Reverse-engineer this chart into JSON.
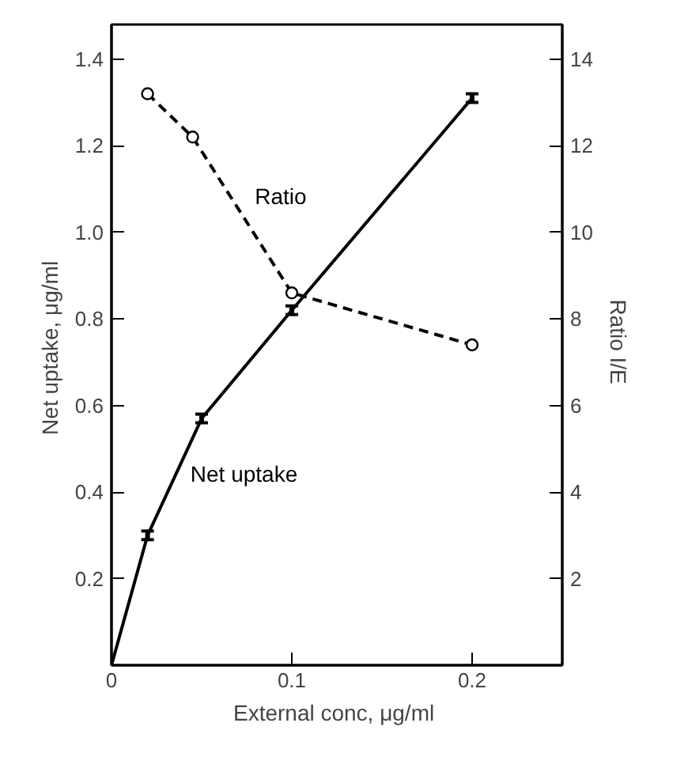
{
  "chart_data": {
    "type": "line",
    "xlabel": "External conc,  μg/ml",
    "ylabel": "Net uptake,  μg/ml",
    "y2label": "Ratio  I/E",
    "xlim": [
      0,
      0.25
    ],
    "xticks": [
      0,
      0.1,
      0.2
    ],
    "ylim": [
      0,
      1.48
    ],
    "yticks": [
      0.2,
      0.4,
      0.6,
      0.8,
      {
        "value": 1,
        "label": "1.0"
      },
      1.2,
      1.4
    ],
    "y2lim": [
      0,
      14.8
    ],
    "y2ticks": [
      2,
      4,
      6,
      8,
      10,
      12,
      14
    ],
    "grid": false,
    "series": [
      {
        "name": "Net uptake",
        "color": "#000000",
        "x": [
          0,
          0.02,
          0.05,
          0.1,
          0.2
        ],
        "values": [
          0,
          0.3,
          0.57,
          0.82,
          1.31
        ],
        "errors": [
          null,
          0.01,
          0.01,
          0.01,
          0.01
        ],
        "marker": "none",
        "line_style": "solid"
      },
      {
        "name": "Ratio",
        "color": "#000000",
        "axis": "y2",
        "x": [
          0.02,
          0.045,
          0.1,
          0.2
        ],
        "values": [
          13.2,
          12.2,
          8.6,
          7.4
        ],
        "marker": "circle",
        "line_style": "dashed"
      }
    ]
  }
}
